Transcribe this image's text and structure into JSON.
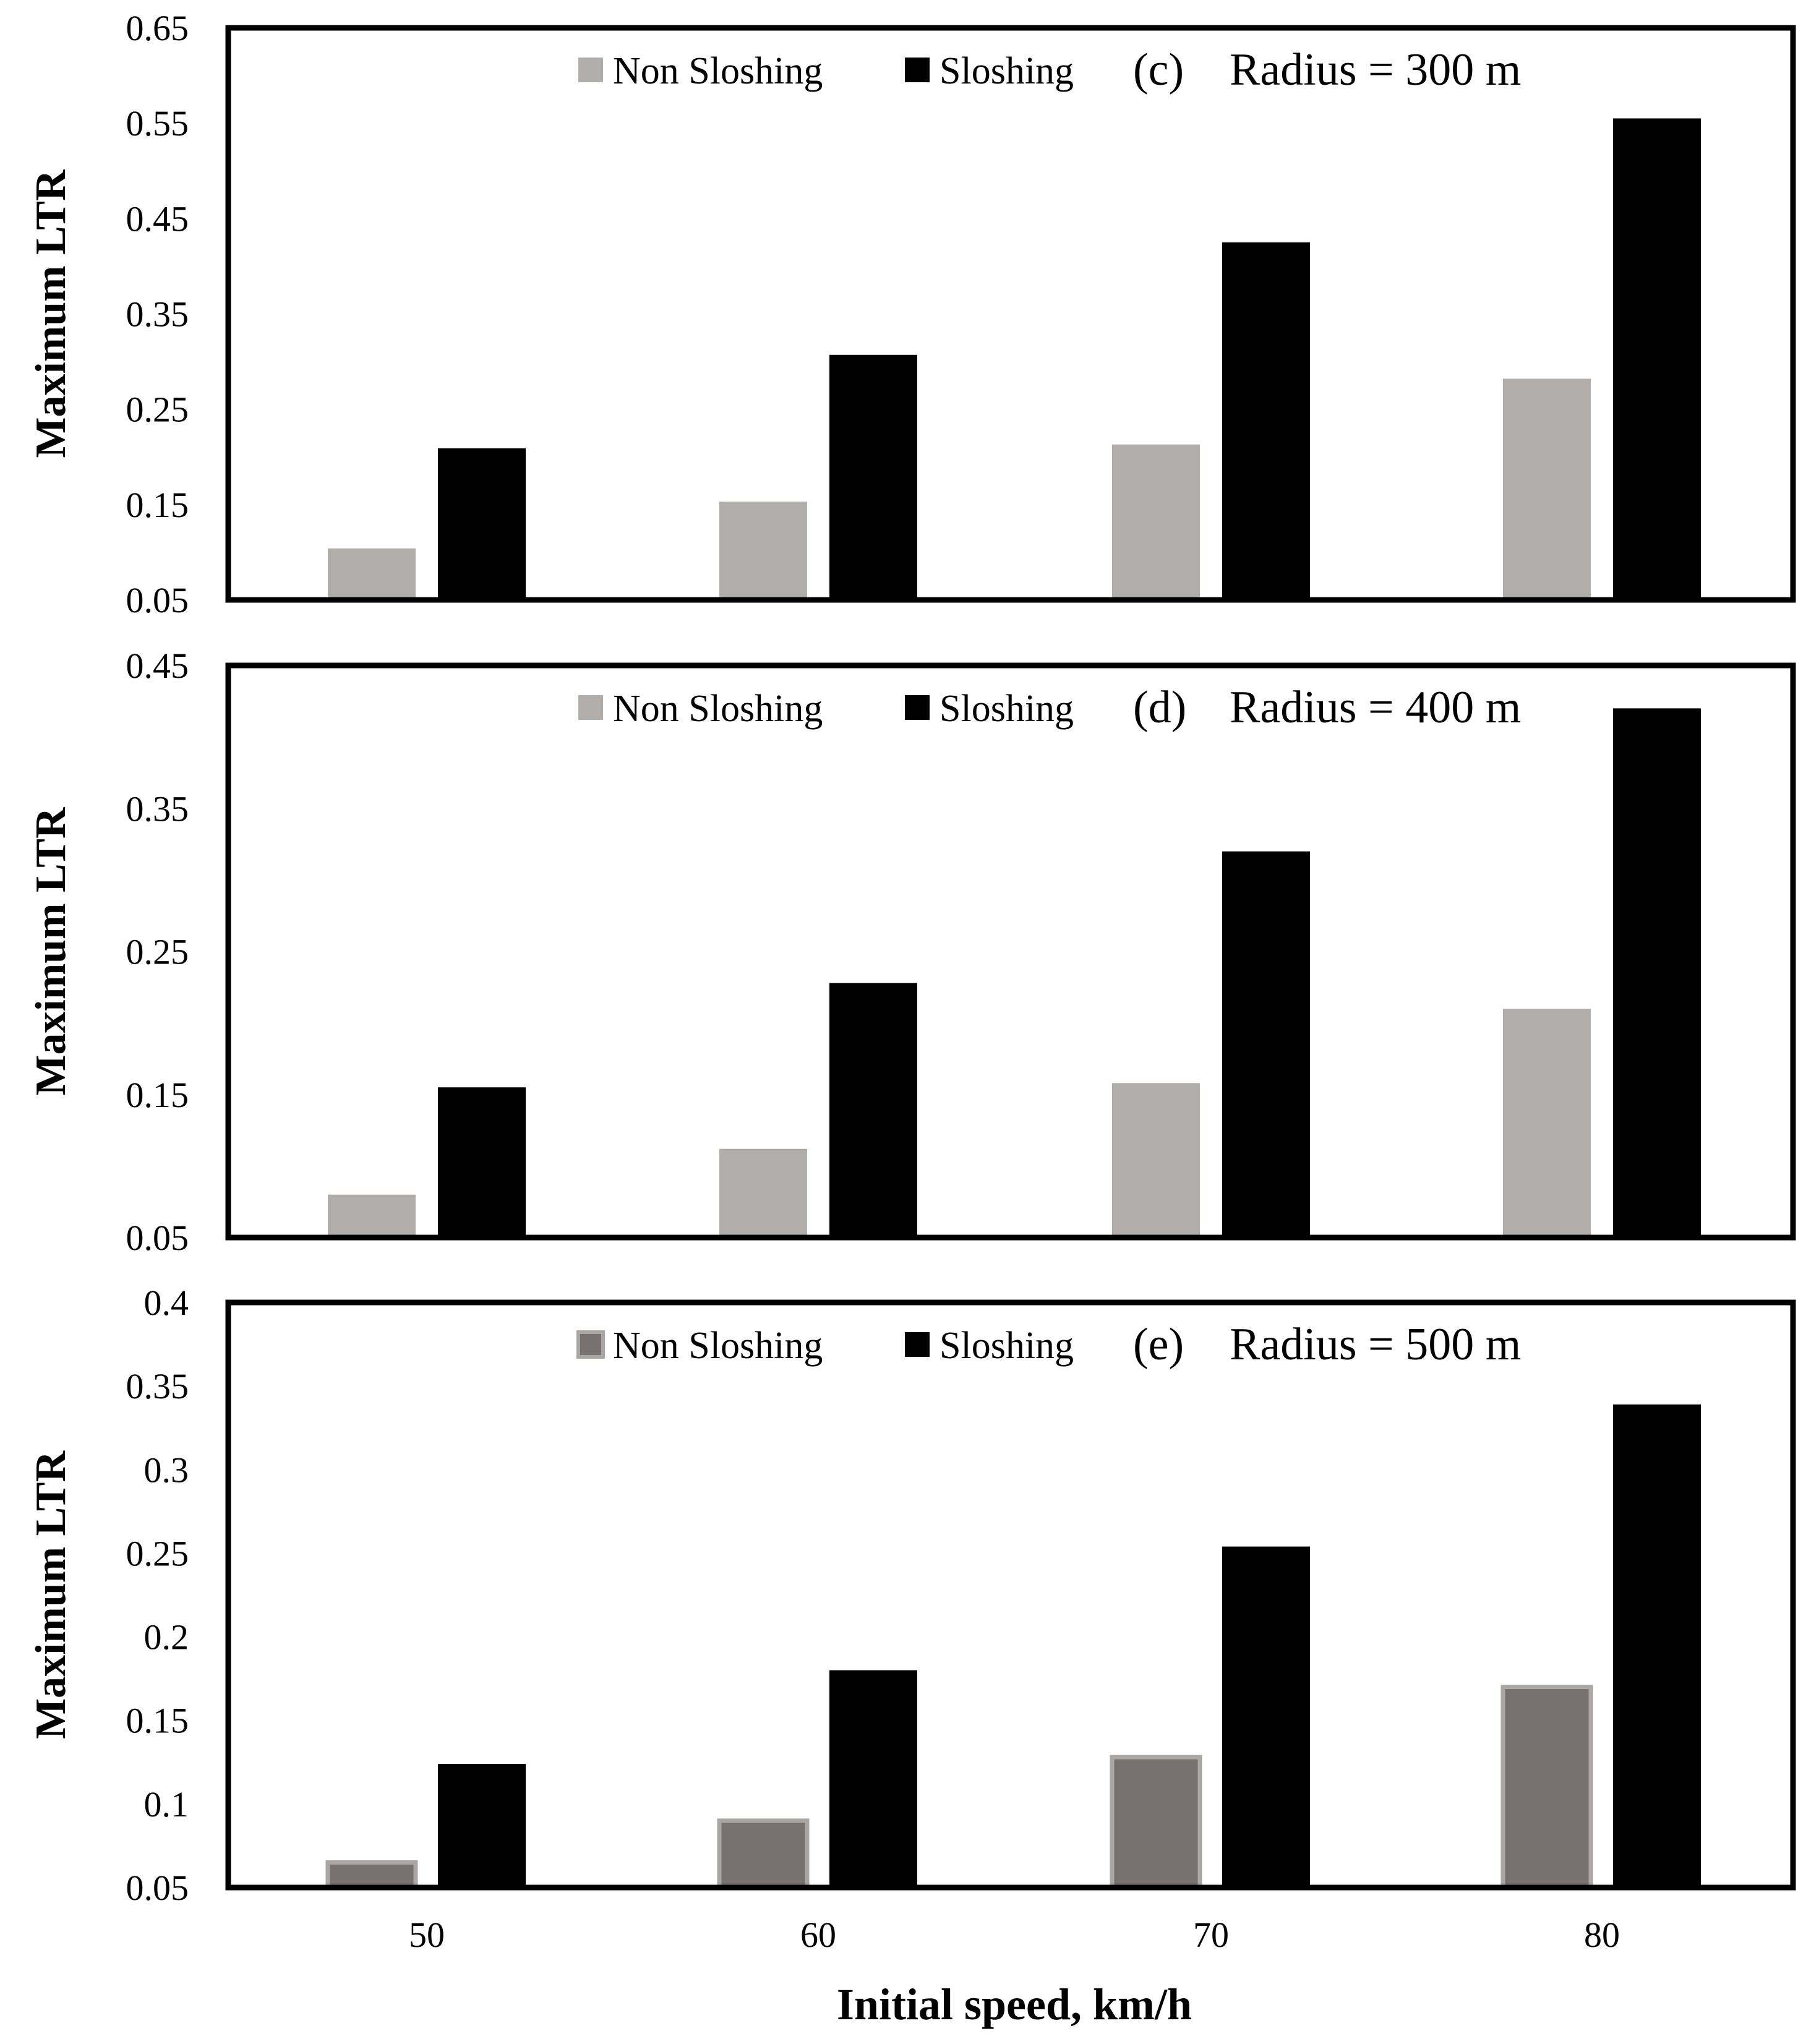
{
  "chart_data": [
    {
      "type": "bar",
      "panel": "(c)",
      "title": "Radius = 300 m",
      "categories": [
        "50",
        "60",
        "70",
        "80"
      ],
      "series": [
        {
          "name": "Non Sloshing",
          "color": "#b0adab",
          "values": [
            0.104,
            0.153,
            0.213,
            0.282
          ]
        },
        {
          "name": "Sloshing",
          "color": "#000000",
          "values": [
            0.209,
            0.307,
            0.425,
            0.555
          ]
        }
      ],
      "ylabel": "Maximum  LTR",
      "ylim": [
        0.05,
        0.65
      ],
      "yticks": [
        "0.05",
        "0.15",
        "0.25",
        "0.35",
        "0.45",
        "0.55",
        "0.65"
      ],
      "grid": false,
      "legend": "top-center"
    },
    {
      "type": "bar",
      "panel": "(d)",
      "title": "Radius = 400 m",
      "categories": [
        "50",
        "60",
        "70",
        "80"
      ],
      "series": [
        {
          "name": "Non Sloshing",
          "color": "#b0adab",
          "values": [
            0.08,
            0.112,
            0.158,
            0.21
          ]
        },
        {
          "name": "Sloshing",
          "color": "#000000",
          "values": [
            0.155,
            0.228,
            0.32,
            0.42
          ]
        }
      ],
      "ylabel": "Maximum  LTR",
      "ylim": [
        0.05,
        0.45
      ],
      "yticks": [
        "0.05",
        "0.15",
        "0.25",
        "0.35",
        "0.45"
      ],
      "grid": false,
      "legend": "top-center"
    },
    {
      "type": "bar",
      "panel": "(e)",
      "title": "Radius = 500 m",
      "categories": [
        "50",
        "60",
        "70",
        "80"
      ],
      "series": [
        {
          "name": "Non Sloshing",
          "color": "#777170",
          "edge": "#a9a6a4",
          "values": [
            0.065,
            0.09,
            0.128,
            0.17
          ]
        },
        {
          "name": "Sloshing",
          "color": "#000000",
          "values": [
            0.124,
            0.18,
            0.254,
            0.339
          ]
        }
      ],
      "ylabel": "Maximum  LTR",
      "ylim": [
        0.05,
        0.4
      ],
      "yticks": [
        "0.05",
        "0.1",
        "0.15",
        "0.2",
        "0.25",
        "0.3",
        "0.35",
        "0.4"
      ],
      "grid": false,
      "legend": "top-center"
    }
  ],
  "xlabel": "Initial speed, km/h",
  "xticks": [
    "50",
    "60",
    "70",
    "80"
  ]
}
